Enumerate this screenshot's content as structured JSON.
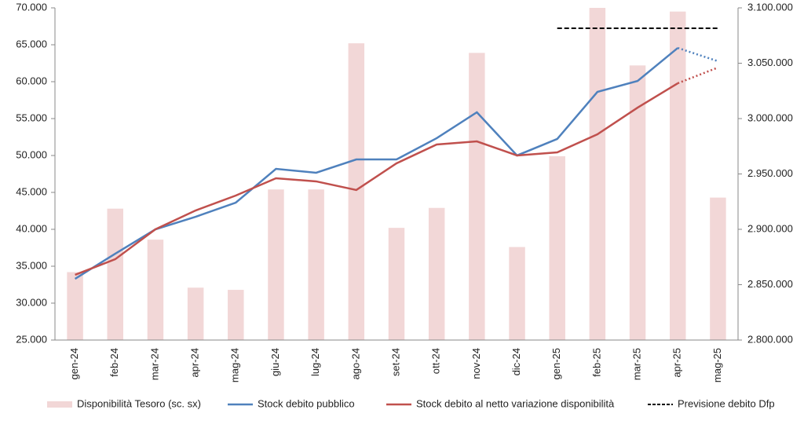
{
  "chart_data": {
    "type": "bar-line",
    "categories": [
      "gen-24",
      "feb-24",
      "mar-24",
      "apr-24",
      "mag-24",
      "giu-24",
      "lug-24",
      "ago-24",
      "set-24",
      "ott-24",
      "nov-24",
      "dic-24",
      "gen-25",
      "feb-25",
      "mar-25",
      "apr-25",
      "mag-25"
    ],
    "series": [
      {
        "name": "Disponibilità Tesoro (sc. sx)",
        "type": "bar",
        "axis": "y",
        "color": "#f2d7d7",
        "values": [
          34200,
          42800,
          38600,
          32100,
          31800,
          45400,
          45400,
          65200,
          40200,
          42900,
          63900,
          37600,
          49900,
          70000,
          62200,
          69500,
          44300
        ]
      },
      {
        "name": "Stock debito pubblico",
        "type": "line",
        "axis": "y2",
        "color": "#4f81bd",
        "dotted_from_index": 15,
        "values": [
          2855300,
          2878000,
          2900000,
          2911300,
          2924100,
          2954600,
          2951100,
          2963100,
          2963100,
          2982300,
          3005700,
          2966700,
          2981600,
          3024100,
          3034000,
          3063800,
          3051800
        ]
      },
      {
        "name": "Stock debito al netto variazione disponibilità",
        "type": "line",
        "axis": "y2",
        "color": "#c0504d",
        "dotted_from_index": 15,
        "values": [
          2858900,
          2873000,
          2900000,
          2917000,
          2930500,
          2946100,
          2943300,
          2935500,
          2959600,
          2976600,
          2979400,
          2966700,
          2969500,
          2985800,
          3009900,
          3031900,
          3046100
        ]
      },
      {
        "name": "Previsione debito Dfp",
        "type": "line",
        "axis": "y2",
        "color": "#000000",
        "dashed": true,
        "values": [
          null,
          null,
          null,
          null,
          null,
          null,
          null,
          null,
          null,
          null,
          null,
          null,
          3081600,
          3081600,
          3081600,
          3081600,
          3081600
        ]
      }
    ],
    "ylim": [
      25000,
      70000
    ],
    "yticks": [
      {
        "value": 25000,
        "label": "25.000"
      },
      {
        "value": 30000,
        "label": "30.000"
      },
      {
        "value": 35000,
        "label": "35.000"
      },
      {
        "value": 40000,
        "label": "40.000"
      },
      {
        "value": 45000,
        "label": "45.000"
      },
      {
        "value": 50000,
        "label": "50.000"
      },
      {
        "value": 55000,
        "label": "55.000"
      },
      {
        "value": 60000,
        "label": "60.000"
      },
      {
        "value": 65000,
        "label": "65.000"
      },
      {
        "value": 70000,
        "label": "70.000"
      }
    ],
    "y2lim": [
      2800000,
      3100000
    ],
    "y2ticks": [
      {
        "value": 2800000,
        "label": "2.800.000"
      },
      {
        "value": 2850000,
        "label": "2.850.000"
      },
      {
        "value": 2900000,
        "label": "2.900.000"
      },
      {
        "value": 2950000,
        "label": "2.950.000"
      },
      {
        "value": 3000000,
        "label": "3.000.000"
      },
      {
        "value": 3050000,
        "label": "3.050.000"
      },
      {
        "value": 3100000,
        "label": "3.100.000"
      }
    ],
    "legend": "bottom"
  }
}
